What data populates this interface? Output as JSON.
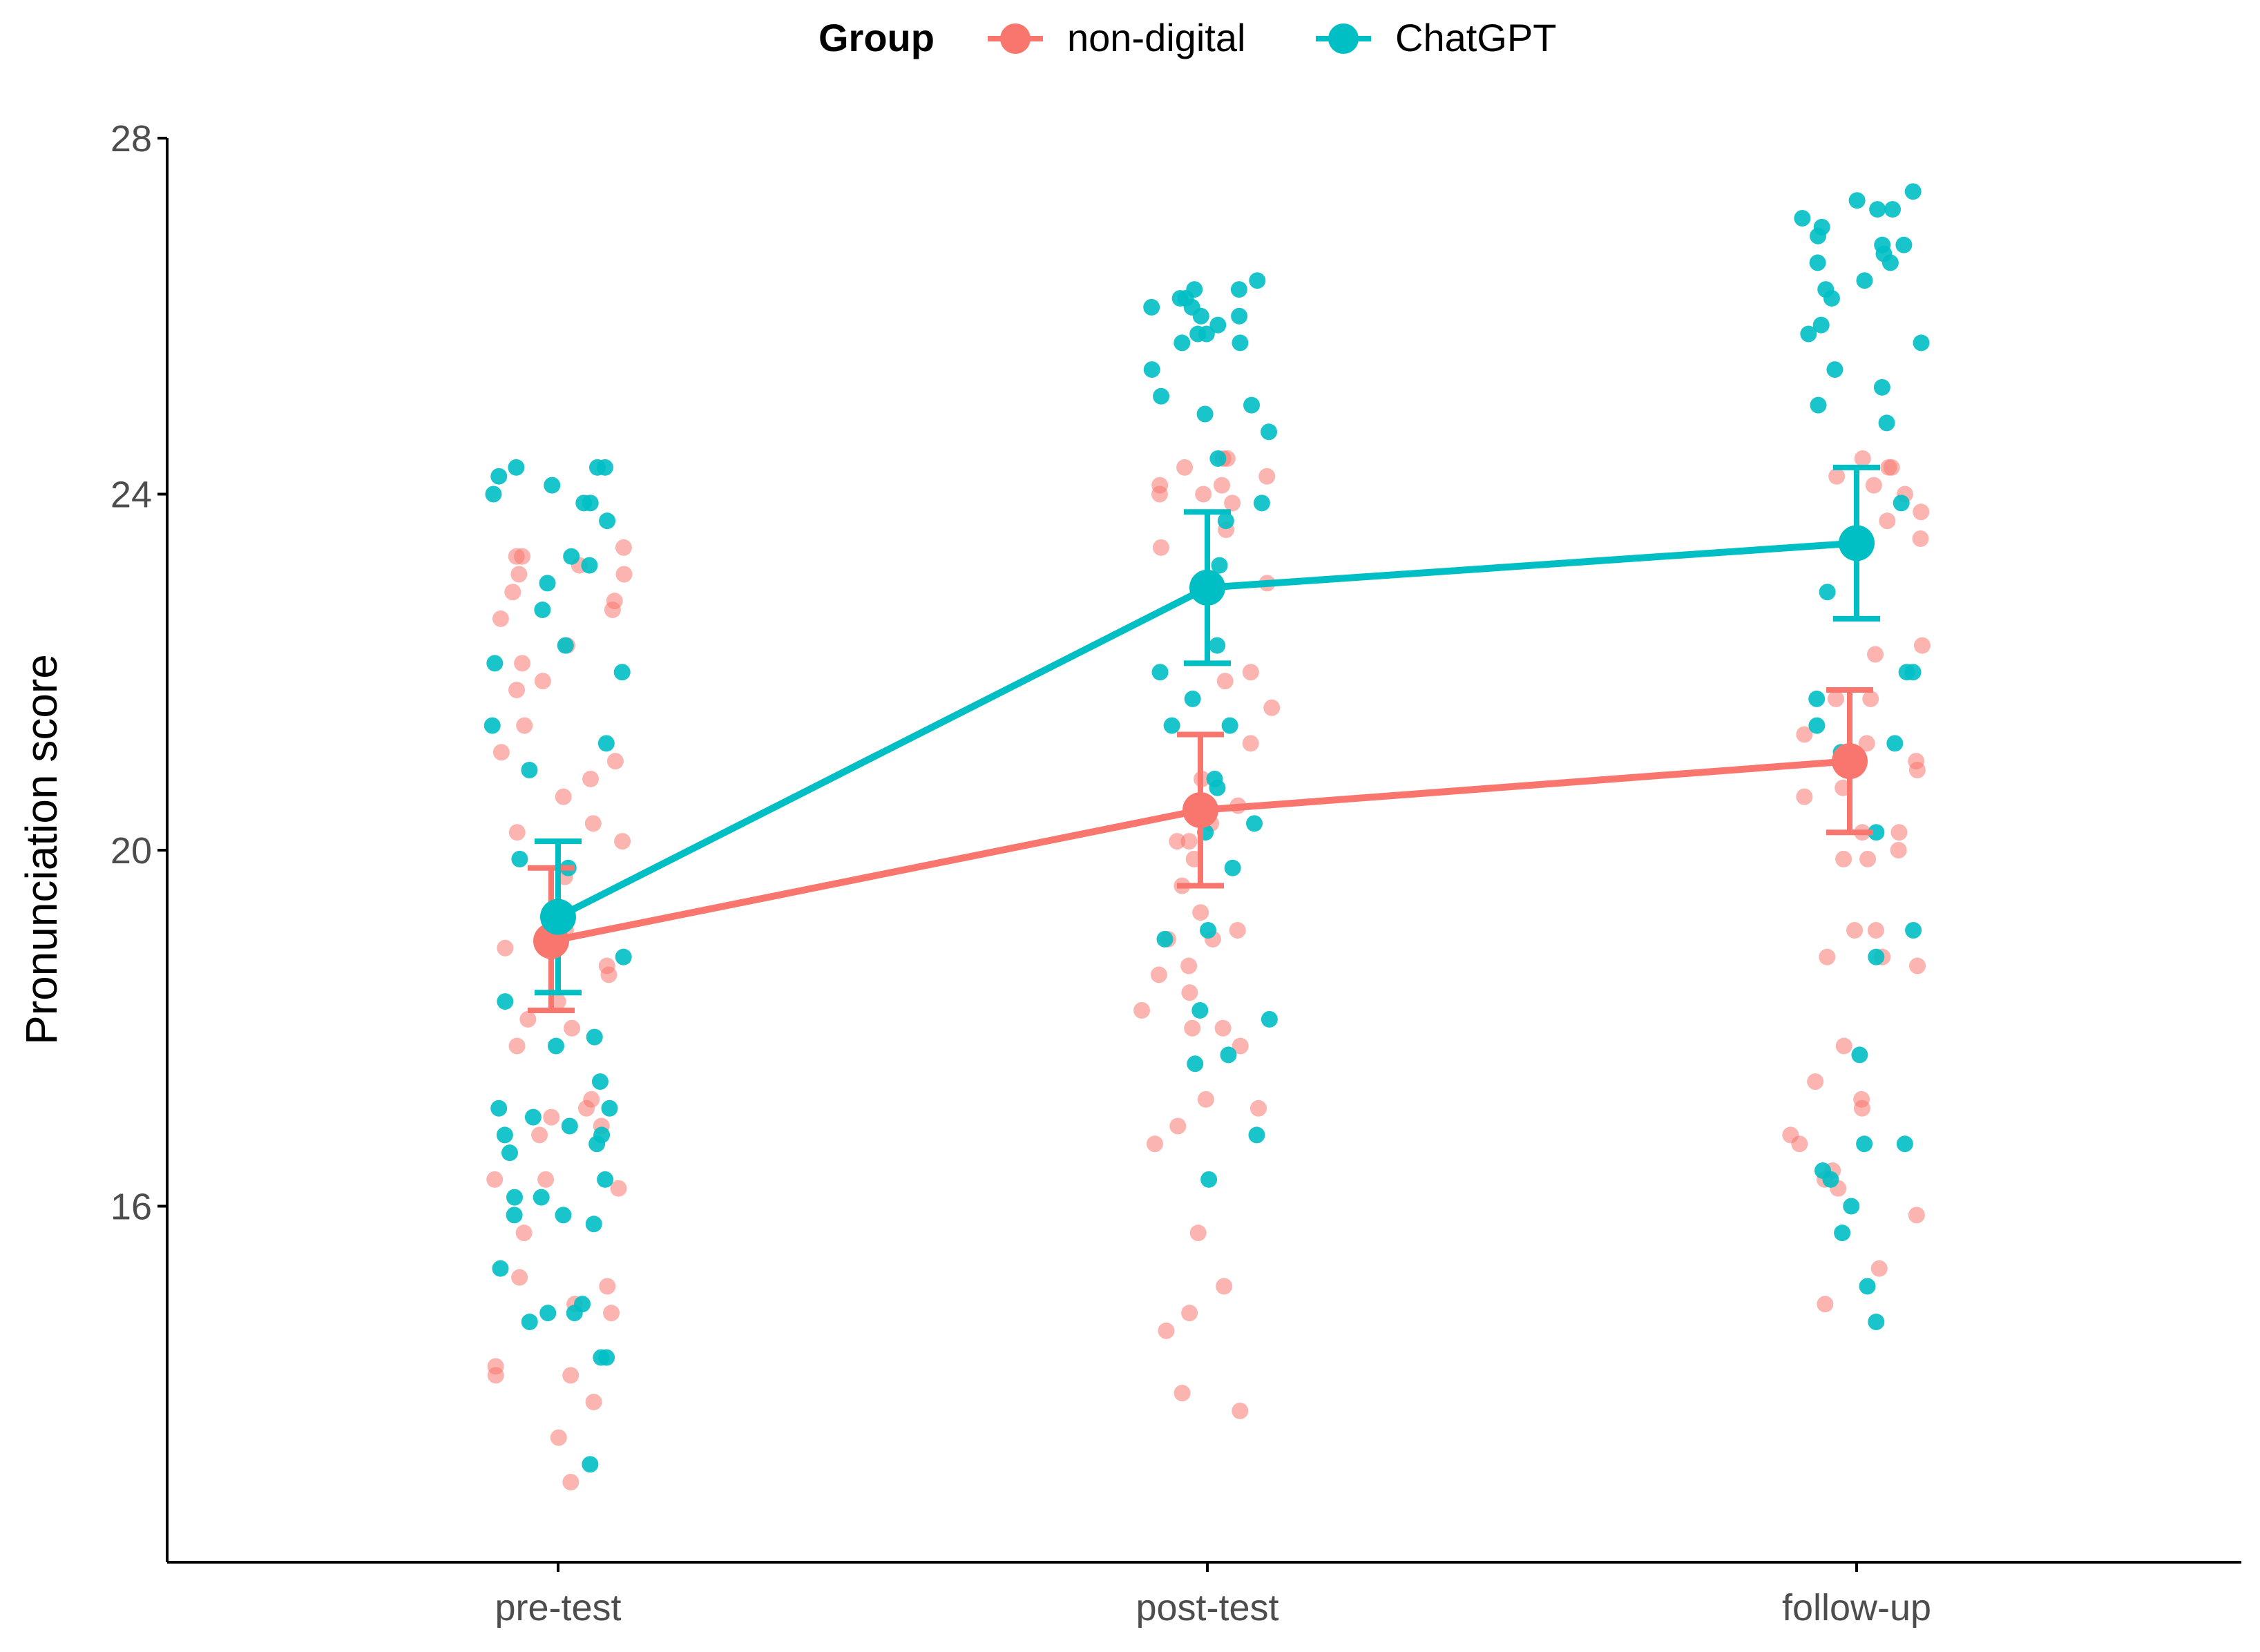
{
  "chart_data": {
    "type": "line",
    "title": "",
    "xlabel": "",
    "ylabel": "Pronunciation score",
    "ylim": [
      12,
      28
    ],
    "yticks": [
      16,
      20,
      24,
      28
    ],
    "categories": [
      "pre-test",
      "post-test",
      "follow-up"
    ],
    "legend": {
      "title": "Group",
      "placement": "top"
    },
    "series": [
      {
        "name": "non-digital",
        "color": "#F8766D",
        "means": [
          18.98,
          20.45,
          21.0
        ],
        "ci_lower": [
          18.2,
          19.6,
          20.2
        ],
        "ci_upper": [
          19.8,
          21.3,
          21.8
        ],
        "points": [
          [
            13.4,
            12.9,
            13.8,
            14.1,
            14.2,
            14.1,
            14.8,
            14.9,
            15.1,
            15.2,
            15.7,
            16.2,
            16.3,
            16.3,
            16.8,
            16.9,
            17.0,
            17.1,
            17.2,
            17.8,
            18.0,
            18.1,
            18.3,
            18.6,
            18.7,
            18.9,
            19.1,
            19.7,
            20.1,
            20.2,
            20.3,
            20.6,
            20.8,
            21.0,
            21.1,
            21.4,
            21.8,
            21.9,
            22.1,
            22.3,
            22.6,
            22.7,
            22.8,
            22.9,
            23.1,
            23.1,
            23.2,
            23.3,
            23.3,
            23.4
          ],
          [
            13.7,
            13.9,
            14.6,
            14.8,
            15.1,
            15.7,
            16.7,
            16.9,
            17.1,
            17.2,
            17.8,
            18.0,
            18.0,
            18.2,
            18.4,
            18.6,
            18.7,
            19.0,
            19.0,
            19.1,
            19.3,
            19.6,
            19.9,
            20.1,
            20.1,
            20.3,
            20.5,
            20.8,
            21.2,
            21.6,
            21.9,
            22.0,
            23.0,
            23.4,
            23.6,
            23.9,
            24.0,
            24.0,
            24.1,
            24.1,
            24.2,
            24.3,
            24.4,
            24.4
          ],
          [
            14.9,
            15.3,
            15.9,
            16.2,
            16.3,
            16.4,
            16.7,
            16.8,
            17.1,
            17.2,
            17.4,
            17.8,
            18.7,
            18.8,
            18.8,
            19.1,
            19.1,
            19.9,
            19.9,
            20.0,
            20.2,
            20.2,
            20.6,
            20.7,
            20.9,
            21.0,
            21.2,
            21.3,
            21.7,
            21.7,
            22.2,
            22.3,
            23.5,
            23.7,
            23.8,
            24.0,
            24.1,
            24.2,
            24.3,
            24.3,
            24.4
          ]
        ]
      },
      {
        "name": "ChatGPT",
        "color": "#00BFC4",
        "means": [
          19.25,
          22.95,
          23.45
        ],
        "ci_lower": [
          18.4,
          22.1,
          22.6
        ],
        "ci_upper": [
          20.1,
          23.8,
          24.3
        ],
        "points": [
          [
            13.1,
            14.3,
            14.3,
            14.7,
            14.8,
            14.8,
            14.9,
            15.3,
            15.8,
            15.9,
            15.9,
            16.1,
            16.1,
            16.3,
            16.6,
            16.7,
            16.8,
            16.8,
            16.9,
            17.0,
            17.1,
            17.1,
            17.4,
            17.8,
            17.9,
            18.3,
            18.8,
            19.8,
            19.9,
            20.9,
            21.2,
            21.4,
            22.0,
            22.1,
            22.3,
            22.7,
            23.0,
            23.2,
            23.3,
            23.7,
            23.9,
            23.9,
            24.0,
            24.1,
            24.2,
            24.3,
            24.3,
            24.3
          ],
          [
            16.3,
            16.8,
            17.6,
            17.7,
            18.1,
            18.2,
            19.0,
            19.1,
            19.8,
            20.2,
            20.3,
            20.7,
            20.8,
            21.4,
            21.4,
            21.7,
            22.0,
            22.3,
            23.2,
            23.7,
            23.9,
            24.4,
            24.7,
            24.9,
            25.0,
            25.1,
            25.4,
            25.7,
            25.7,
            25.8,
            25.8,
            25.9,
            26.0,
            26.0,
            26.1,
            26.1,
            26.2,
            26.2,
            26.3,
            26.3,
            26.4
          ],
          [
            14.7,
            15.1,
            16.0,
            15.7,
            16.3,
            16.4,
            16.7,
            16.7,
            17.7,
            18.8,
            19.1,
            20.2,
            21.1,
            21.2,
            21.4,
            21.7,
            22.0,
            22.0,
            22.9,
            23.9,
            24.8,
            25.0,
            25.2,
            25.4,
            25.7,
            25.8,
            25.9,
            26.2,
            26.3,
            26.4,
            26.6,
            26.6,
            26.7,
            26.8,
            26.8,
            26.9,
            27.0,
            27.1,
            27.2,
            27.2,
            27.3,
            27.4
          ]
        ]
      }
    ]
  }
}
